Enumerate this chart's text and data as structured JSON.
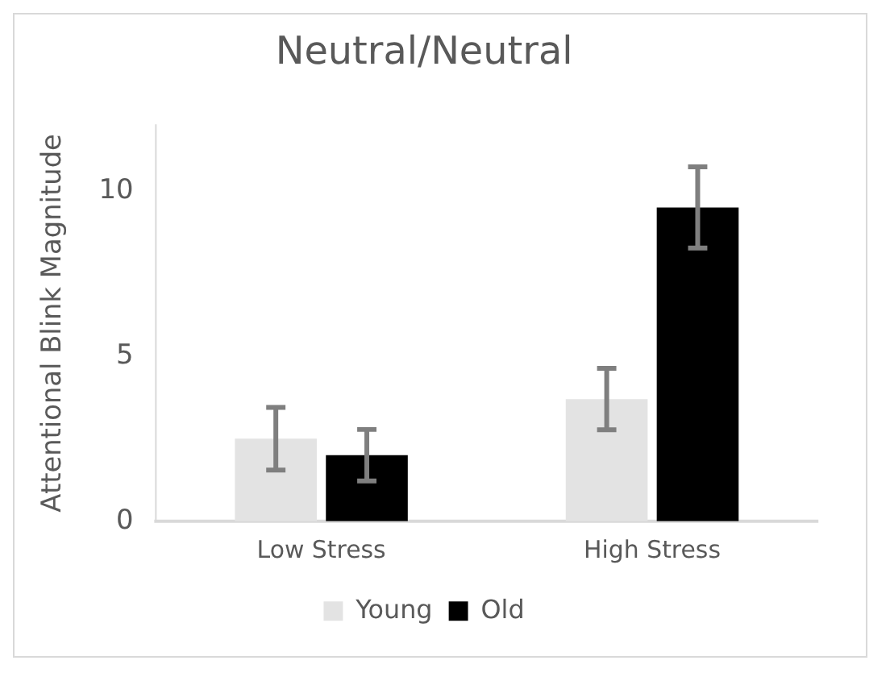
{
  "chart_data": {
    "type": "bar",
    "title": "Neutral/Neutral",
    "ylabel": "Attentional Blink Magnitude",
    "categories": [
      "Low Stress",
      "High Stress"
    ],
    "series": [
      {
        "name": "Young",
        "color": "#e3e3e3",
        "values": [
          2.5,
          3.7
        ],
        "errors": [
          0.95,
          0.93
        ]
      },
      {
        "name": "Old",
        "color": "#000000",
        "values": [
          2.0,
          9.5
        ],
        "errors": [
          0.78,
          1.23
        ]
      }
    ],
    "ylim": [
      0,
      12
    ],
    "yticks": [
      0,
      5,
      10
    ],
    "grid": false,
    "legend": "bottom"
  }
}
